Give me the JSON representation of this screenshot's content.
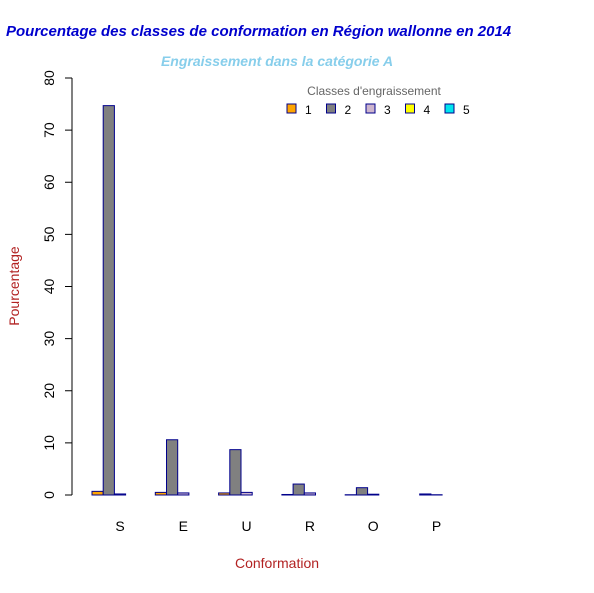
{
  "chart_data": {
    "type": "bar",
    "title": "Pourcentage des classes de conformation en Région wallonne en 2014",
    "subtitle": "Engraissement dans la catégorie A",
    "xlabel": "Conformation",
    "ylabel": "Pourcentage",
    "categories": [
      "S",
      "E",
      "U",
      "R",
      "O",
      "P"
    ],
    "ylim": [
      0,
      80
    ],
    "yticks": [
      0,
      10,
      20,
      30,
      40,
      50,
      60,
      70,
      80
    ],
    "legend": {
      "title": "Classes d'engraissement",
      "placement": "top-right"
    },
    "series": [
      {
        "name": "1",
        "color": "#FFA500",
        "values": [
          0.7,
          0.5,
          0.4,
          0.1,
          0.05,
          0.0
        ]
      },
      {
        "name": "2",
        "color": "#808080",
        "values": [
          74.7,
          10.6,
          8.7,
          2.1,
          1.4,
          0.2
        ]
      },
      {
        "name": "3",
        "color": "#CDB5CD",
        "values": [
          0.2,
          0.4,
          0.5,
          0.4,
          0.15,
          0.05
        ]
      },
      {
        "name": "4",
        "color": "#FFFF00",
        "values": [
          0.0,
          0.0,
          0.0,
          0.0,
          0.0,
          0.0
        ]
      },
      {
        "name": "5",
        "color": "#00E5EE",
        "values": [
          0.0,
          0.0,
          0.0,
          0.0,
          0.0,
          0.0
        ]
      }
    ],
    "colors": {
      "title": "#0000CD",
      "subtitle": "#87CEEB",
      "axis_label": "#B22222",
      "bar_border": "#00008B"
    }
  }
}
